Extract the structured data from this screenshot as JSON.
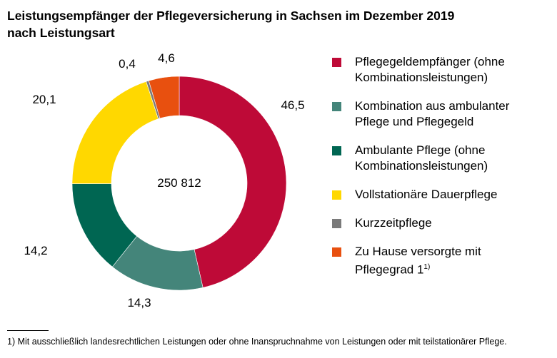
{
  "chart_data": {
    "type": "pie",
    "donut": true,
    "title": "Leistungsempfänger der Pflegeversicherung in Sachsen im Dezember 2019",
    "subtitle": "nach Leistungsart",
    "center_label": "250 812",
    "unit": "%",
    "legend_position": "right",
    "slices": [
      {
        "name": "Pflegegeldempfänger (ohne Kombinationsleistungen)",
        "value": 46.5,
        "label": "46,5",
        "color": "#BE0A37"
      },
      {
        "name": "Kombination aus ambulanter Pflege und Pflegegeld",
        "value": 14.3,
        "label": "14,3",
        "color": "#44857A"
      },
      {
        "name": "Ambulante Pflege (ohne Kombinationsleistungen)",
        "value": 14.2,
        "label": "14,2",
        "color": "#006652"
      },
      {
        "name": "Vollstationäre Dauerpflege",
        "value": 20.1,
        "label": "20,1",
        "color": "#FFD800"
      },
      {
        "name": "Kurzzeitpflege",
        "value": 0.4,
        "label": "0,4",
        "color": "#7A7A7A"
      },
      {
        "name": "Zu Hause versorgte mit Pflegegrad 1",
        "value": 4.6,
        "label": "4,6",
        "color": "#E8500F",
        "footnote_mark": "1)"
      }
    ]
  },
  "footnote": "1) Mit ausschließlich landesrechtlichen Leistungen oder ohne Inanspruchnahme von Leistungen oder mit teilstationärer Pflege."
}
